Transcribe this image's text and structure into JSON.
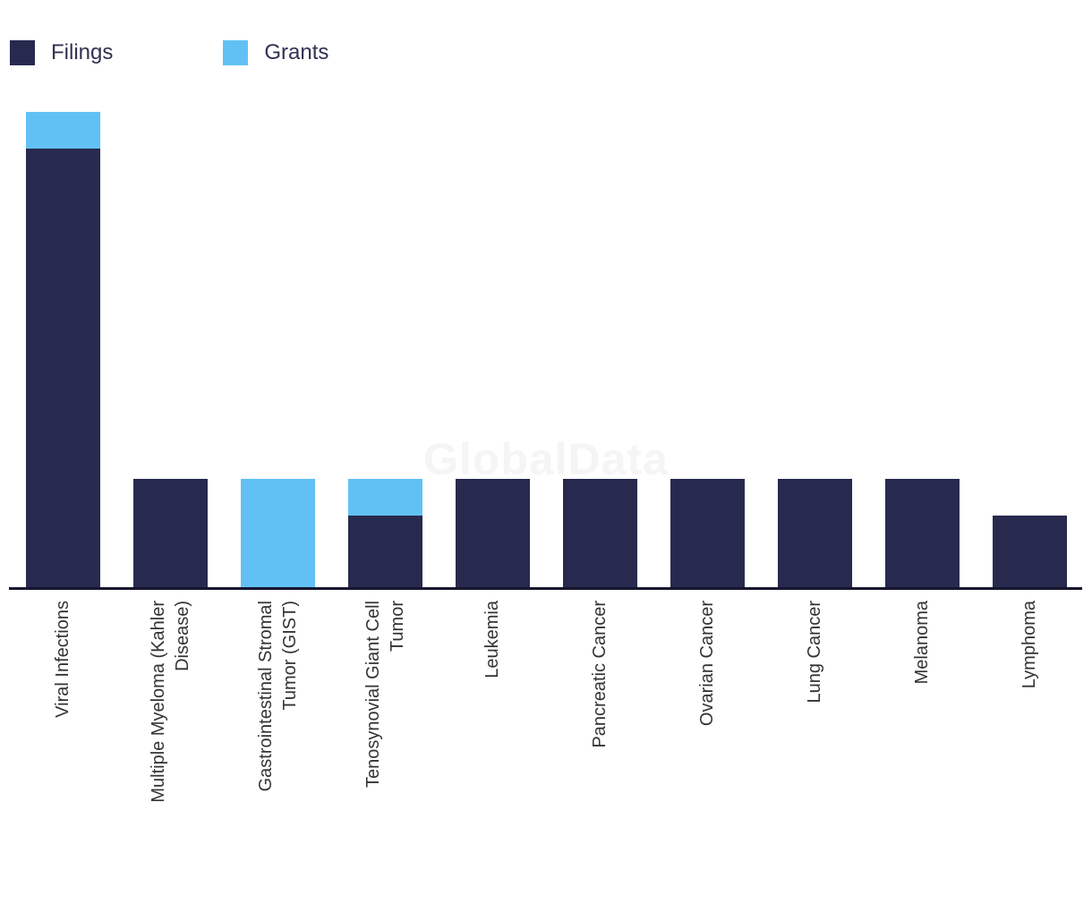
{
  "legend": {
    "items": [
      {
        "label": "Filings",
        "color": "#272a4e"
      },
      {
        "label": "Grants",
        "color": "#61c1f5"
      }
    ]
  },
  "watermark": "GlobalData",
  "colors": {
    "filings": "#272a4e",
    "grants": "#61c1f5",
    "axis": "#15162e",
    "tick_label": "#333333"
  },
  "chart_data": {
    "type": "bar",
    "stacked": true,
    "orientation": "vertical",
    "title": "",
    "xlabel": "",
    "ylabel": "",
    "ylim": [
      0,
      13
    ],
    "grid": false,
    "y_axis_visible": false,
    "legend_position": "top-left",
    "categories": [
      "Viral Infections",
      "Multiple Myeloma (Kahler Disease)",
      "Gastrointestinal Stromal Tumor (GIST)",
      "Tenosynovial Giant Cell Tumor",
      "Leukemia",
      "Pancreatic Cancer",
      "Ovarian Cancer",
      "Lung Cancer",
      "Melanoma",
      "Lymphoma"
    ],
    "category_label_lines": [
      [
        "Viral Infections"
      ],
      [
        "Multiple Myeloma (Kahler",
        "Disease)"
      ],
      [
        "Gastrointestinal Stromal",
        "Tumor (GIST)"
      ],
      [
        "Tenosynovial Giant Cell",
        "Tumor"
      ],
      [
        "Leukemia"
      ],
      [
        "Pancreatic Cancer"
      ],
      [
        "Ovarian Cancer"
      ],
      [
        "Lung Cancer"
      ],
      [
        "Melanoma"
      ],
      [
        "Lymphoma"
      ]
    ],
    "series": [
      {
        "name": "Filings",
        "color": "#272a4e",
        "values": [
          12,
          3,
          0,
          2,
          3,
          3,
          3,
          3,
          3,
          2
        ]
      },
      {
        "name": "Grants",
        "color": "#61c1f5",
        "values": [
          1,
          0,
          3,
          1,
          0,
          0,
          0,
          0,
          0,
          0
        ]
      }
    ]
  }
}
